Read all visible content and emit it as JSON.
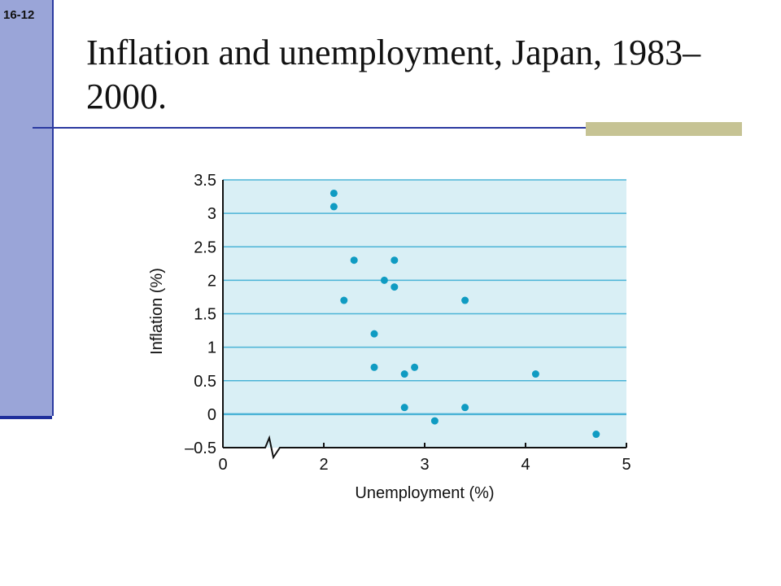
{
  "slide": {
    "number": "16-12",
    "title": "Inflation and unemployment, Japan, 1983–2000."
  },
  "colors": {
    "sidebar": "#9aa5d8",
    "rule": "#2b3aa0",
    "accent": "#c6c394",
    "plot_bg": "#d9eff5",
    "gridline": "#4ab3d6",
    "point": "#0f9bc2"
  },
  "chart_data": {
    "type": "scatter",
    "xlabel": "Unemployment (%)",
    "ylabel": "Inflation (%)",
    "xlim": [
      0,
      5
    ],
    "ylim": [
      -0.5,
      3.5
    ],
    "x_axis_break": true,
    "x_ticks": [
      "0",
      "2",
      "3",
      "4",
      "5"
    ],
    "y_ticks": [
      "–0.5",
      "0",
      "0.5",
      "1",
      "1.5",
      "2",
      "2.5",
      "3",
      "3.5"
    ],
    "grid": true,
    "points": [
      {
        "x": 2.1,
        "y": 3.3
      },
      {
        "x": 2.1,
        "y": 3.1
      },
      {
        "x": 2.2,
        "y": 1.7
      },
      {
        "x": 2.3,
        "y": 2.3
      },
      {
        "x": 2.5,
        "y": 1.2
      },
      {
        "x": 2.5,
        "y": 0.7
      },
      {
        "x": 2.6,
        "y": 2.0
      },
      {
        "x": 2.7,
        "y": 2.3
      },
      {
        "x": 2.7,
        "y": 1.9
      },
      {
        "x": 2.8,
        "y": 0.6
      },
      {
        "x": 2.8,
        "y": 0.1
      },
      {
        "x": 2.9,
        "y": 0.7
      },
      {
        "x": 3.1,
        "y": -0.1
      },
      {
        "x": 3.4,
        "y": 1.7
      },
      {
        "x": 3.4,
        "y": 0.1
      },
      {
        "x": 4.1,
        "y": 0.6
      },
      {
        "x": 4.7,
        "y": -0.3
      }
    ]
  }
}
